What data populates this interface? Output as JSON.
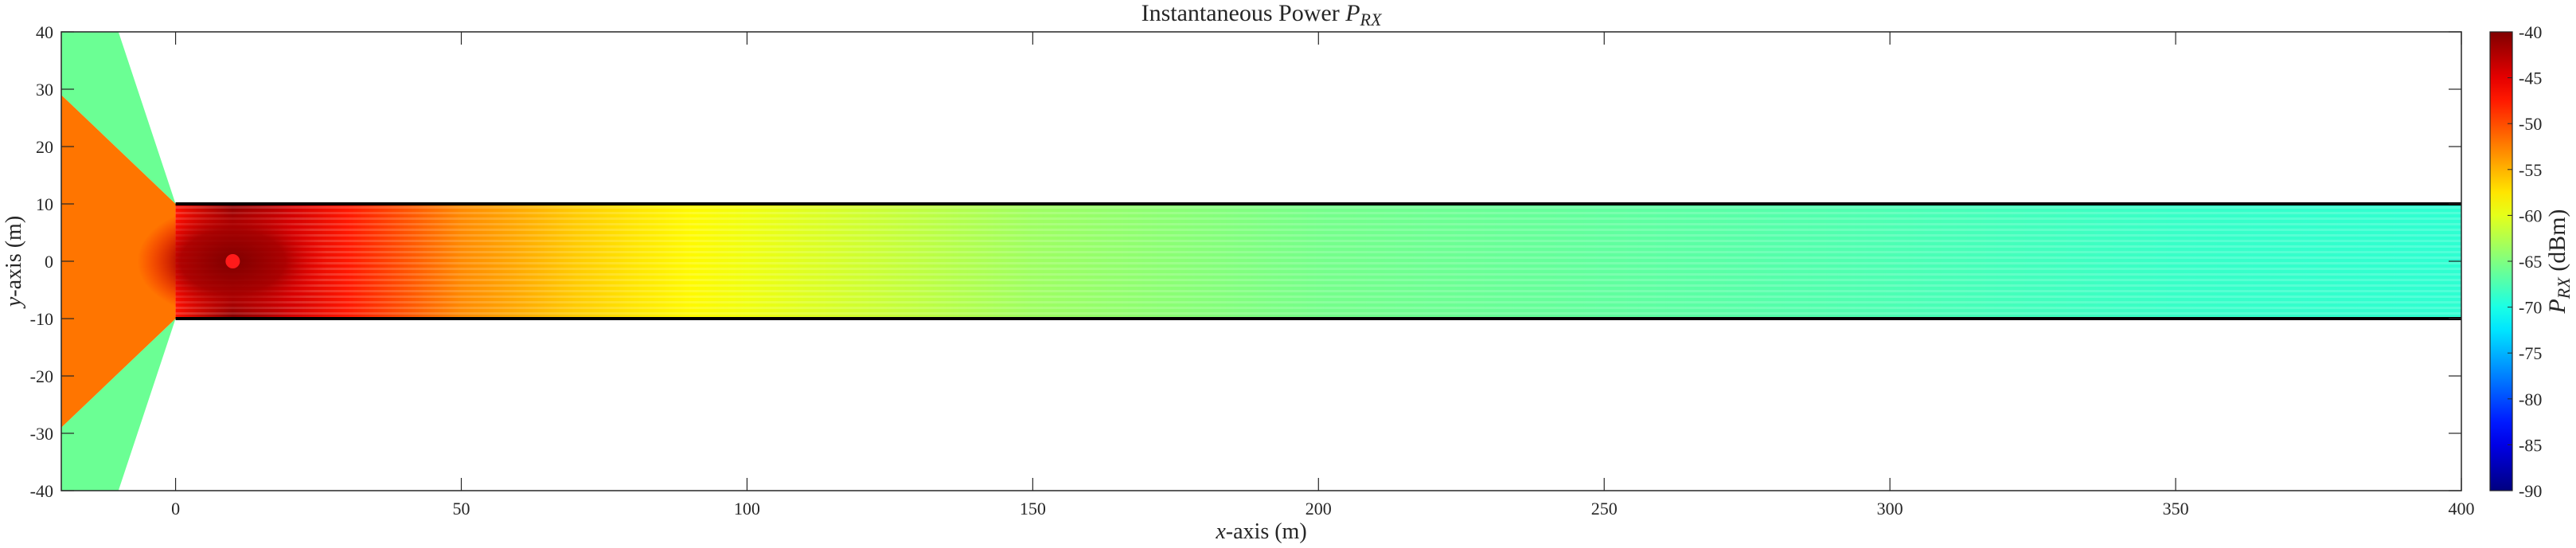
{
  "chart_data": {
    "type": "heatmap",
    "title": "Instantaneous Power ",
    "title_symbol": "P",
    "title_subscript": "RX",
    "xlabel_var": "x",
    "xlabel_rest": "-axis (m)",
    "ylabel_var": "y",
    "ylabel_rest": "-axis (m)",
    "xlim": [
      -20,
      400
    ],
    "ylim": [
      -40,
      40
    ],
    "x_ticks": [
      0,
      50,
      100,
      150,
      200,
      250,
      300,
      350,
      400
    ],
    "y_ticks": [
      40,
      30,
      20,
      10,
      0,
      -10,
      -20,
      -30,
      -40
    ],
    "colorbar": {
      "label_symbol": "P",
      "label_subscript": "RX",
      "label_unit": " (dBm)",
      "range": [
        -90,
        -40
      ],
      "ticks": [
        -40,
        -45,
        -50,
        -55,
        -60,
        -65,
        -70,
        -75,
        -80,
        -85,
        -90
      ],
      "colormap": "jet"
    },
    "tunnel": {
      "x_start": 0,
      "x_end": 400,
      "y_top": 10,
      "y_bottom": -10,
      "wall_color": "#000000"
    },
    "transmitter": {
      "x": 10,
      "y": 0,
      "color": "#ff1a1a"
    },
    "outside_region": {
      "x_start": -20,
      "x_end": 0
    },
    "power_profile_dbm": {
      "x": [
        -20,
        0,
        10,
        25,
        50,
        75,
        100,
        125,
        150,
        175,
        200,
        250,
        300,
        350,
        400
      ],
      "value": [
        -52,
        -47,
        -40,
        -46,
        -53,
        -57,
        -59.5,
        -61.5,
        -63.5,
        -64.5,
        -65.5,
        -66.5,
        -67.5,
        -68.5,
        -69
      ]
    }
  }
}
